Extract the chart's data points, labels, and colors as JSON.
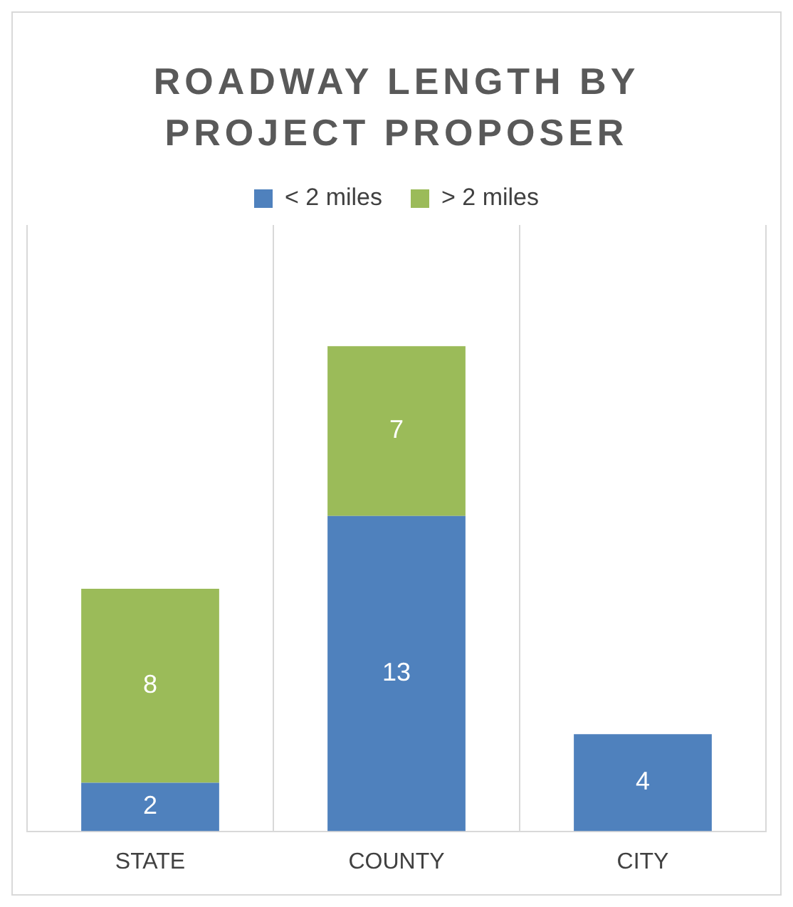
{
  "chart_data": {
    "type": "bar",
    "title": "ROADWAY LENGTH BY PROJECT PROPOSER",
    "categories": [
      "STATE",
      "COUNTY",
      "CITY"
    ],
    "stacked": true,
    "series": [
      {
        "name": "< 2 miles",
        "color": "#4f81bd",
        "values": [
          2,
          13,
          4
        ]
      },
      {
        "name": "> 2 miles",
        "color": "#9bbb59",
        "values": [
          8,
          7,
          null
        ]
      }
    ],
    "data_labels": true,
    "grid": "x",
    "legend": "top"
  }
}
